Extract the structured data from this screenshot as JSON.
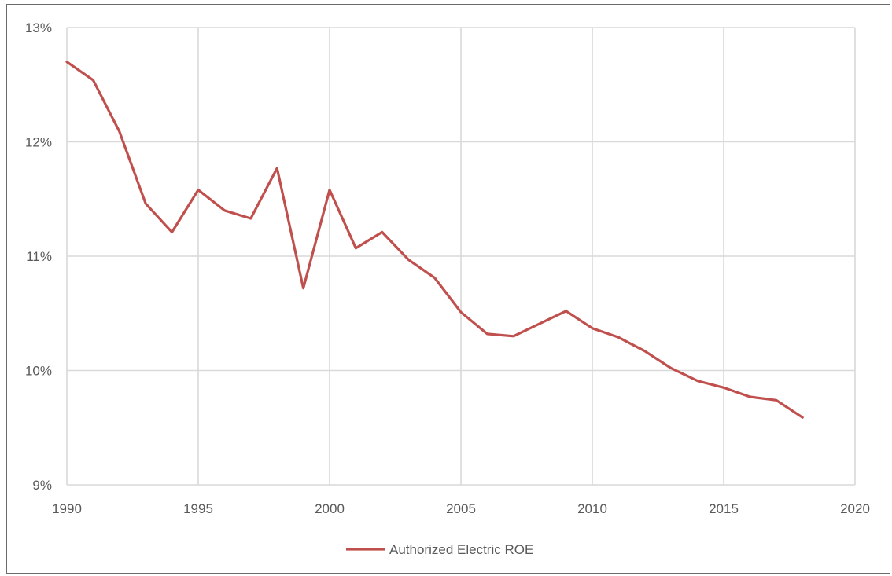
{
  "chart_data": {
    "type": "line",
    "title": "",
    "xlabel": "",
    "ylabel": "",
    "xlim": [
      1990,
      2020
    ],
    "ylim": [
      9,
      13
    ],
    "x_ticks": [
      "1990",
      "1995",
      "2000",
      "2005",
      "2010",
      "2015",
      "2020"
    ],
    "y_ticks": [
      "9%",
      "10%",
      "11%",
      "12%",
      "13%"
    ],
    "grid": true,
    "legend_position": "bottom",
    "series": [
      {
        "name": "Authorized Electric ROE",
        "color": "#c0504d",
        "x": [
          1990,
          1991,
          1992,
          1993,
          1994,
          1995,
          1996,
          1997,
          1998,
          1999,
          2000,
          2001,
          2002,
          2003,
          2004,
          2005,
          2006,
          2007,
          2008,
          2009,
          2010,
          2011,
          2012,
          2013,
          2014,
          2015,
          2016,
          2017,
          2018
        ],
        "y": [
          12.7,
          12.54,
          12.09,
          11.46,
          11.21,
          11.58,
          11.4,
          11.33,
          11.77,
          10.72,
          11.58,
          11.07,
          11.21,
          10.97,
          10.81,
          10.51,
          10.32,
          10.3,
          10.41,
          10.52,
          10.37,
          10.29,
          10.17,
          10.02,
          9.91,
          9.85,
          9.77,
          9.74,
          9.59
        ]
      }
    ]
  }
}
